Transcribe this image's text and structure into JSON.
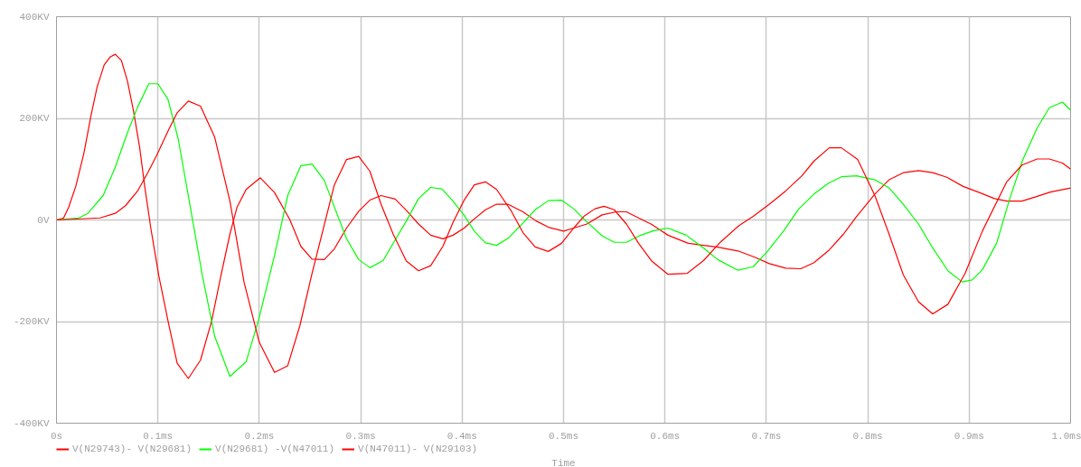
{
  "chart_data": {
    "type": "line",
    "xlabel": "Time",
    "xlim": [
      0,
      1
    ],
    "ylim": [
      -400,
      400
    ],
    "xticks": [
      {
        "value": 0,
        "label": "0s"
      },
      {
        "value": 0.1,
        "label": "0.1ms"
      },
      {
        "value": 0.2,
        "label": "0.2ms"
      },
      {
        "value": 0.3,
        "label": "0.3ms"
      },
      {
        "value": 0.4,
        "label": "0.4ms"
      },
      {
        "value": 0.5,
        "label": "0.5ms"
      },
      {
        "value": 0.6,
        "label": "0.6ms"
      },
      {
        "value": 0.7,
        "label": "0.7ms"
      },
      {
        "value": 0.8,
        "label": "0.8ms"
      },
      {
        "value": 0.9,
        "label": "0.9ms"
      },
      {
        "value": 1,
        "label": "1.0ms"
      }
    ],
    "yticks": [
      {
        "value": -400,
        "label": "-400KV"
      },
      {
        "value": -200,
        "label": "-200KV"
      },
      {
        "value": 0,
        "label": "0V"
      },
      {
        "value": 200,
        "label": "200KV"
      },
      {
        "value": 400,
        "label": "400KV"
      }
    ],
    "grid": true,
    "legend": "bottom",
    "line_style": "solid",
    "series": [
      {
        "name": "V(N29743)- V(N29681)",
        "color": "#ff0000",
        "x": [
          0,
          0.007,
          0.012,
          0.019,
          0.027,
          0.034,
          0.04,
          0.047,
          0.053,
          0.058,
          0.064,
          0.07,
          0.076,
          0.082,
          0.087,
          0.093,
          0.101,
          0.11,
          0.119,
          0.13,
          0.142,
          0.153,
          0.162,
          0.171,
          0.178,
          0.187,
          0.201,
          0.215,
          0.23,
          0.241,
          0.252,
          0.264,
          0.274,
          0.286,
          0.298,
          0.309,
          0.32,
          0.334,
          0.345,
          0.357,
          0.369,
          0.381,
          0.391,
          0.402,
          0.412,
          0.423,
          0.434,
          0.445,
          0.46,
          0.473,
          0.486,
          0.5,
          0.51,
          0.523,
          0.538,
          0.552,
          0.562,
          0.574,
          0.587,
          0.603,
          0.623,
          0.638,
          0.651,
          0.672,
          0.688,
          0.703,
          0.719,
          0.734,
          0.747,
          0.762,
          0.776,
          0.789,
          0.807,
          0.821,
          0.835,
          0.85,
          0.864,
          0.878,
          0.894,
          0.91,
          0.925,
          0.937,
          0.952,
          0.965,
          0.98,
          1.0
        ],
        "values": [
          0,
          4,
          25,
          66,
          131,
          205,
          261,
          305,
          321,
          326,
          314,
          273,
          214,
          143,
          66,
          -16,
          -111,
          -199,
          -282,
          -312,
          -276,
          -199,
          -111,
          -28,
          25,
          60,
          83,
          54,
          1,
          -52,
          -77,
          -78,
          -57,
          -16,
          17,
          39,
          48,
          41,
          19,
          -8,
          -30,
          -37,
          -30,
          -16,
          2,
          20,
          31,
          31,
          16,
          -2,
          -15,
          -22,
          -16,
          -8,
          10,
          16,
          16,
          4,
          -9,
          -30,
          -46,
          -50,
          -53,
          -61,
          -73,
          -86,
          -95,
          -96,
          -84,
          -59,
          -28,
          7,
          51,
          79,
          93,
          97,
          93,
          84,
          66,
          54,
          42,
          37,
          37,
          45,
          55,
          63
        ]
      },
      {
        "name": "V(N29681) -V(N47011)",
        "color": "#00ff00",
        "x": [
          0,
          0.022,
          0.031,
          0.046,
          0.058,
          0.07,
          0.08,
          0.091,
          0.1,
          0.11,
          0.12,
          0.132,
          0.144,
          0.156,
          0.171,
          0.187,
          0.199,
          0.215,
          0.228,
          0.241,
          0.252,
          0.264,
          0.286,
          0.298,
          0.309,
          0.322,
          0.345,
          0.357,
          0.369,
          0.38,
          0.391,
          0.402,
          0.412,
          0.423,
          0.434,
          0.446,
          0.46,
          0.472,
          0.485,
          0.498,
          0.51,
          0.522,
          0.538,
          0.55,
          0.562,
          0.575,
          0.589,
          0.603,
          0.621,
          0.638,
          0.652,
          0.672,
          0.687,
          0.701,
          0.718,
          0.732,
          0.747,
          0.761,
          0.774,
          0.789,
          0.807,
          0.821,
          0.835,
          0.85,
          0.864,
          0.879,
          0.893,
          0.903,
          0.913,
          0.927,
          0.94,
          0.953,
          0.967,
          0.979,
          0.992,
          1.0
        ],
        "values": [
          0,
          4,
          13,
          48,
          104,
          172,
          222,
          268,
          268,
          237,
          160,
          25,
          -111,
          -229,
          -308,
          -279,
          -199,
          -70,
          48,
          107,
          110,
          78,
          -37,
          -78,
          -94,
          -80,
          -2,
          42,
          64,
          61,
          37,
          9,
          -22,
          -45,
          -50,
          -35,
          -6,
          20,
          38,
          39,
          22,
          -2,
          -31,
          -44,
          -44,
          -31,
          -21,
          -16,
          -30,
          -55,
          -78,
          -99,
          -92,
          -62,
          -19,
          22,
          51,
          72,
          85,
          87,
          79,
          63,
          31,
          -8,
          -55,
          -100,
          -122,
          -118,
          -98,
          -46,
          42,
          119,
          181,
          221,
          232,
          216
        ]
      },
      {
        "name": "V(N47011)- V(N29103)",
        "color": "#ff0000",
        "x": [
          0,
          0.043,
          0.058,
          0.068,
          0.08,
          0.09,
          0.099,
          0.11,
          0.119,
          0.13,
          0.142,
          0.156,
          0.171,
          0.185,
          0.2,
          0.215,
          0.228,
          0.24,
          0.252,
          0.274,
          0.286,
          0.298,
          0.309,
          0.32,
          0.332,
          0.345,
          0.357,
          0.369,
          0.381,
          0.391,
          0.402,
          0.412,
          0.423,
          0.434,
          0.448,
          0.46,
          0.472,
          0.485,
          0.498,
          0.51,
          0.52,
          0.531,
          0.54,
          0.55,
          0.562,
          0.574,
          0.587,
          0.603,
          0.622,
          0.638,
          0.655,
          0.673,
          0.687,
          0.703,
          0.719,
          0.735,
          0.747,
          0.762,
          0.774,
          0.79,
          0.807,
          0.821,
          0.835,
          0.85,
          0.864,
          0.879,
          0.896,
          0.913,
          0.937,
          0.952,
          0.967,
          0.979,
          0.992,
          1.0
        ],
        "values": [
          0,
          4,
          13,
          28,
          57,
          93,
          128,
          175,
          211,
          234,
          224,
          163,
          37,
          -123,
          -241,
          -300,
          -287,
          -208,
          -105,
          69,
          119,
          125,
          96,
          31,
          -28,
          -81,
          -100,
          -90,
          -52,
          -5,
          39,
          69,
          75,
          60,
          19,
          -25,
          -53,
          -62,
          -46,
          -16,
          7,
          22,
          27,
          20,
          -8,
          -46,
          -81,
          -107,
          -105,
          -80,
          -43,
          -11,
          7,
          31,
          57,
          87,
          116,
          142,
          142,
          119,
          48,
          -28,
          -108,
          -161,
          -185,
          -166,
          -105,
          -22,
          75,
          108,
          120,
          120,
          112,
          100
        ]
      }
    ]
  }
}
